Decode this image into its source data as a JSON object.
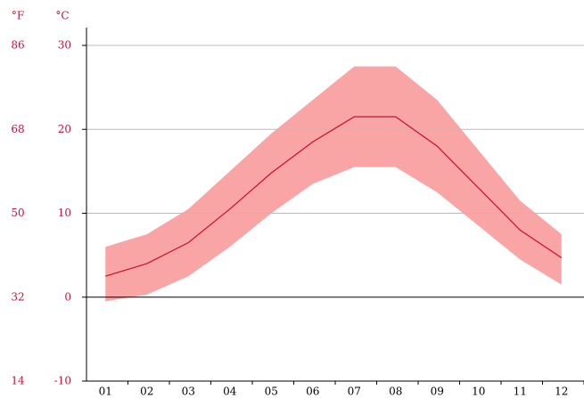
{
  "chart_data": {
    "type": "band-line",
    "y_unit_label": "°C",
    "y2_unit_label": "°F",
    "categories": [
      "01",
      "02",
      "03",
      "04",
      "05",
      "06",
      "07",
      "08",
      "09",
      "10",
      "11",
      "12"
    ],
    "series": [
      {
        "color": "#c8102e",
        "values": [
          2.5,
          4.0,
          6.5,
          10.5,
          14.8,
          18.5,
          21.5,
          21.5,
          18.0,
          13.0,
          8.0,
          4.7
        ]
      },
      {
        "color": "#f9a5a5",
        "values": [
          6.0,
          7.5,
          10.5,
          15.0,
          19.5,
          23.5,
          27.5,
          27.5,
          23.5,
          17.5,
          11.5,
          7.5
        ]
      },
      {
        "color": "#f9a5a5",
        "values": [
          -0.5,
          0.3,
          2.5,
          6.0,
          10.0,
          13.5,
          15.5,
          15.5,
          12.5,
          8.5,
          4.5,
          1.5
        ]
      }
    ],
    "ylim": [
      -10,
      30
    ],
    "yticks": [
      -10,
      0,
      10,
      20,
      30
    ],
    "y2lim": [
      14,
      86
    ],
    "y2ticks": [
      14,
      32,
      50,
      68,
      86
    ],
    "grid": true
  }
}
